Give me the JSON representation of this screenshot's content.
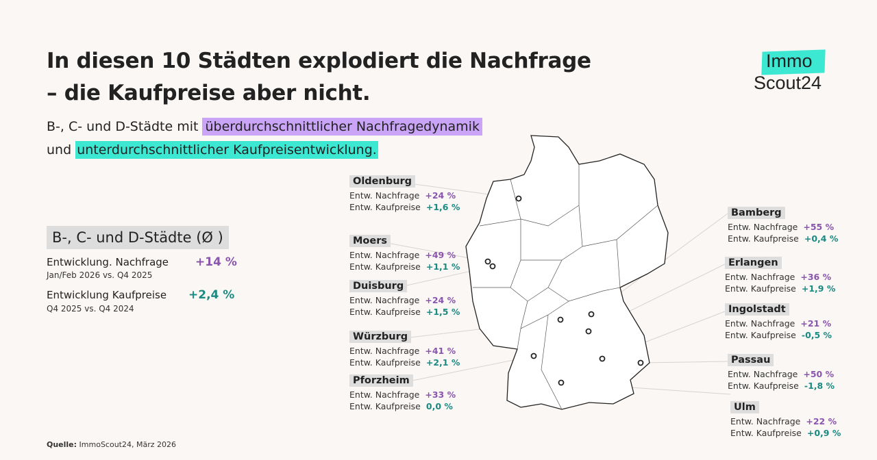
{
  "title_line1": "In diesen 10 Städten explodiert die Nachfrage",
  "title_line2": "– die Kaufpreise aber nicht.",
  "subtitle": {
    "part1": "B-, C- und D-Städte mit ",
    "hl1": "überdurchschnittlicher Nachfragedynamik",
    "part2": "und ",
    "hl2": "unterdurchschnittlicher Kaufpreisentwicklung."
  },
  "logo": {
    "top": "Immo",
    "bottom": "Scout24"
  },
  "average": {
    "title": "B-, C- und D-Städte (Ø )",
    "demand_label": "Entwicklung. Nachfrage",
    "demand_period": "Jan/Feb 2026 vs. Q4 2025",
    "demand_value": "+14 %",
    "price_label": "Entwicklung Kaufpreise",
    "price_period": "Q4 2025 vs. Q4 2024",
    "price_value": "+2,4 %"
  },
  "row_labels": {
    "demand": "Entw. Nachfrage",
    "price": "Entw. Kaufpreise"
  },
  "colors": {
    "demand": "#8a55ad",
    "price": "#1a8a83",
    "highlight_demand": "#c9a4f7",
    "highlight_price": "#3de8d3"
  },
  "cities": [
    {
      "name": "Oldenburg",
      "demand": "+24 %",
      "price": "+1,6 %"
    },
    {
      "name": "Moers",
      "demand": "+49 %",
      "price": "+1,1 %"
    },
    {
      "name": "Duisburg",
      "demand": "+24 %",
      "price": "+1,5 %"
    },
    {
      "name": "Würzburg",
      "demand": "+41 %",
      "price": "+2,1 %"
    },
    {
      "name": "Pforzheim",
      "demand": "+33 %",
      "price": "0,0 %"
    },
    {
      "name": "Bamberg",
      "demand": "+55 %",
      "price": "+0,4 %"
    },
    {
      "name": "Erlangen",
      "demand": "+36 %",
      "price": "+1,9 %"
    },
    {
      "name": "Ingolstadt",
      "demand": "+21 %",
      "price": "-0,5 %"
    },
    {
      "name": "Passau",
      "demand": "+50 %",
      "price": "-1,8 %"
    },
    {
      "name": "Ulm",
      "demand": "+22 %",
      "price": "+0,9 %"
    }
  ],
  "source": {
    "label": "Quelle:",
    "text": " ImmoScout24, März 2026"
  }
}
